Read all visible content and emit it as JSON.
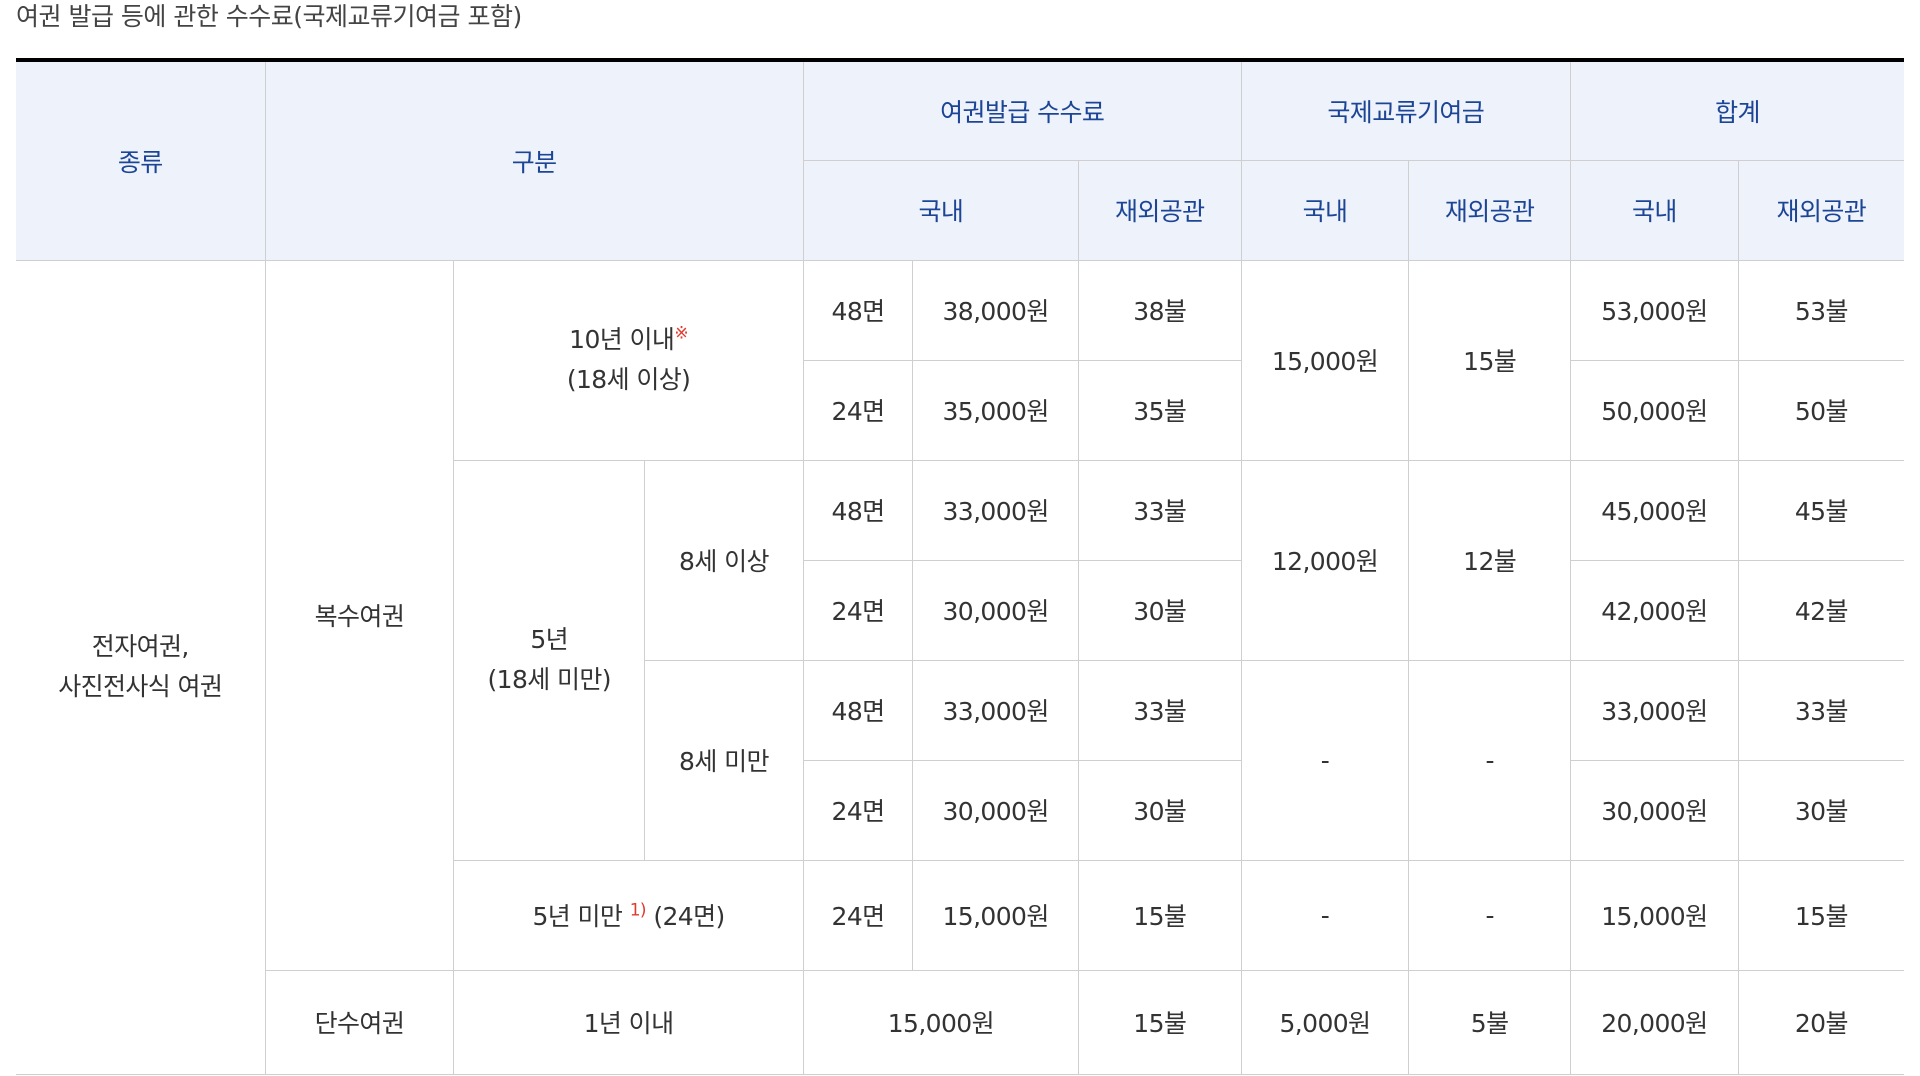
{
  "caption": "여권 발급 등에 관한 수수료(국제교류기여금 포함)",
  "headers": {
    "type": "종류",
    "category": "구분",
    "issuance_fee": "여권발급 수수료",
    "contribution": "국제교류기여금",
    "total": "합계",
    "domestic": "국내",
    "overseas": "재외공관"
  },
  "labels": {
    "kind_line1": "전자여권,",
    "kind_line2": "사진전사식 여권",
    "multiple": "복수여권",
    "single": "단수여권",
    "ten_year_line1": "10년 이내",
    "ten_year_mark": "※",
    "ten_year_line2": "(18세 이상)",
    "five_year_line1": "5년",
    "five_year_line2": "(18세 미만)",
    "age8_over": "8세 이상",
    "age8_under": "8세 미만",
    "under5_prefix": "5년 미만",
    "under5_note": "1)",
    "under5_suffix": "(24면)",
    "one_year": "1년 이내"
  },
  "rows": {
    "r1": {
      "pages": "48면",
      "fee_dom": "38,000원",
      "fee_ovs": "38불",
      "total_dom": "53,000원",
      "total_ovs": "53불"
    },
    "r2": {
      "pages": "24면",
      "fee_dom": "35,000원",
      "fee_ovs": "35불",
      "total_dom": "50,000원",
      "total_ovs": "50불"
    },
    "r3": {
      "pages": "48면",
      "fee_dom": "33,000원",
      "fee_ovs": "33불",
      "total_dom": "45,000원",
      "total_ovs": "45불"
    },
    "r4": {
      "pages": "24면",
      "fee_dom": "30,000원",
      "fee_ovs": "30불",
      "total_dom": "42,000원",
      "total_ovs": "42불"
    },
    "r5": {
      "pages": "48면",
      "fee_dom": "33,000원",
      "fee_ovs": "33불",
      "total_dom": "33,000원",
      "total_ovs": "33불"
    },
    "r6": {
      "pages": "24면",
      "fee_dom": "30,000원",
      "fee_ovs": "30불",
      "total_dom": "30,000원",
      "total_ovs": "30불"
    },
    "r7": {
      "pages": "24면",
      "fee_dom": "15,000원",
      "fee_ovs": "15불",
      "contrib_dom": "-",
      "contrib_ovs": "-",
      "total_dom": "15,000원",
      "total_ovs": "15불"
    },
    "r8": {
      "fee_dom": "15,000원",
      "fee_ovs": "15불",
      "contrib_dom": "5,000원",
      "contrib_ovs": "5불",
      "total_dom": "20,000원",
      "total_ovs": "20불"
    }
  },
  "contributions": {
    "ten_year": {
      "dom": "15,000원",
      "ovs": "15불"
    },
    "age8_over": {
      "dom": "12,000원",
      "ovs": "12불"
    },
    "age8_under": {
      "dom": "-",
      "ovs": "-"
    }
  }
}
